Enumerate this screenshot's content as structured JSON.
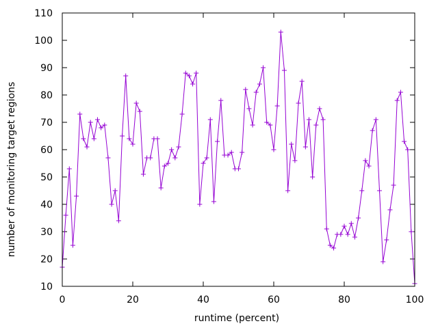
{
  "chart_data": {
    "type": "line",
    "xlabel": "runtime (percent)",
    "ylabel": "number of monitoring target regions",
    "xlim": [
      0,
      100
    ],
    "ylim": [
      10,
      110
    ],
    "xticks": [
      0,
      20,
      40,
      60,
      80,
      100
    ],
    "yticks": [
      10,
      20,
      30,
      40,
      50,
      60,
      70,
      80,
      90,
      100,
      110
    ],
    "grid": false,
    "marker": "plus",
    "series_color": "#9400d3",
    "series": [
      {
        "x": [
          0,
          1,
          2,
          3,
          4,
          5,
          6,
          7,
          8,
          9,
          10,
          11,
          12,
          13,
          14,
          15,
          16,
          17,
          18,
          19,
          20,
          21,
          22,
          23,
          24,
          25,
          26,
          27,
          28,
          29,
          30,
          31,
          32,
          33,
          34,
          35,
          36,
          37,
          38,
          39,
          40,
          41,
          42,
          43,
          44,
          45,
          46,
          47,
          48,
          49,
          50,
          51,
          52,
          53,
          54,
          55,
          56,
          57,
          58,
          59,
          60,
          61,
          62,
          63,
          64,
          65,
          66,
          67,
          68,
          69,
          70,
          71,
          72,
          73,
          74,
          75,
          76,
          77,
          78,
          79,
          80,
          81,
          82,
          83,
          84,
          85,
          86,
          87,
          88,
          89,
          90,
          91,
          92,
          93,
          94,
          95,
          96,
          97,
          98,
          99,
          100
        ],
        "y": [
          17,
          36,
          53,
          25,
          43,
          73,
          64,
          61,
          70,
          64,
          71,
          68,
          69,
          57,
          40,
          45,
          34,
          65,
          87,
          64,
          62,
          77,
          74,
          51,
          57,
          57,
          64,
          64,
          46,
          54,
          55,
          60,
          57,
          61,
          73,
          88,
          87,
          84,
          88,
          40,
          55,
          57,
          71,
          41,
          63,
          78,
          58,
          58,
          59,
          53,
          53,
          59,
          82,
          75,
          69,
          81,
          84,
          90,
          70,
          69,
          60,
          76,
          103,
          89,
          45,
          62,
          56,
          77,
          85,
          61,
          71,
          50,
          69,
          75,
          71,
          31,
          25,
          24,
          29,
          29,
          32,
          29,
          33,
          28,
          35,
          45,
          56,
          54,
          67,
          71,
          45,
          19,
          27,
          38,
          47,
          78,
          81,
          63,
          60,
          30,
          11
        ]
      }
    ]
  }
}
